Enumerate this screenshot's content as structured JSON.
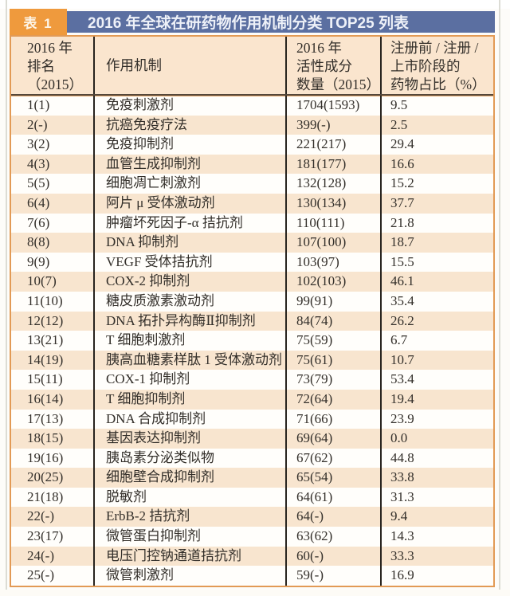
{
  "page": {
    "badge_label": "表 1",
    "title": "2016 年全球在研药物作用机制分类 TOP25 列表",
    "colors": {
      "badge_orange": "#EF9A3D",
      "banner_blue": "#5B6FA1",
      "header_peach": "#FAE5CE",
      "stripe_peach": "#F8E5CF",
      "border_orange": "#E29A55",
      "divider_dark": "#28241F",
      "text_dark": "#332F2A"
    }
  },
  "table": {
    "columns": [
      {
        "lines": [
          "2016 年",
          "排名",
          "（2015）"
        ]
      },
      {
        "lines": [
          "作用机制"
        ]
      },
      {
        "lines": [
          "2016 年",
          "活性成分",
          "数量（2015）"
        ]
      },
      {
        "lines": [
          "注册前 / 注册 /",
          "上市阶段的",
          "药物占比（%）"
        ]
      }
    ],
    "rows": [
      {
        "rank": "1(1)",
        "mechanism": "免疫刺激剂",
        "count": "1704(1593)",
        "pct": "9.5"
      },
      {
        "rank": "2(-)",
        "mechanism": "抗癌免疫疗法",
        "count": "399(-)",
        "pct": "2.5"
      },
      {
        "rank": "3(2)",
        "mechanism": "免疫抑制剂",
        "count": "221(217)",
        "pct": "29.4"
      },
      {
        "rank": "4(3)",
        "mechanism": "血管生成抑制剂",
        "count": "181(177)",
        "pct": "16.6"
      },
      {
        "rank": "5(5)",
        "mechanism": "细胞凋亡刺激剂",
        "count": "132(128)",
        "pct": "15.2"
      },
      {
        "rank": "6(4)",
        "mechanism": "阿片 μ 受体激动剂",
        "count": "130(134)",
        "pct": "37.7"
      },
      {
        "rank": "7(6)",
        "mechanism": "肿瘤坏死因子-α 拮抗剂",
        "count": "110(111)",
        "pct": "21.8"
      },
      {
        "rank": "8(8)",
        "mechanism": "DNA 抑制剂",
        "count": "107(100)",
        "pct": "18.7"
      },
      {
        "rank": "9(9)",
        "mechanism": "VEGF 受体拮抗剂",
        "count": "103(97)",
        "pct": "15.5"
      },
      {
        "rank": "10(7)",
        "mechanism": "COX-2 抑制剂",
        "count": "102(103)",
        "pct": "46.1"
      },
      {
        "rank": "11(10)",
        "mechanism": "糖皮质激素激动剂",
        "count": "99(91)",
        "pct": "35.4"
      },
      {
        "rank": "12(12)",
        "mechanism": "DNA 拓扑异构酶Ⅱ抑制剂",
        "count": "84(74)",
        "pct": "26.2"
      },
      {
        "rank": "13(21)",
        "mechanism": "T 细胞刺激剂",
        "count": "75(59)",
        "pct": "6.7"
      },
      {
        "rank": "14(19)",
        "mechanism": "胰高血糖素样肽 1 受体激动剂",
        "count": "75(61)",
        "pct": "10.7"
      },
      {
        "rank": "15(11)",
        "mechanism": "COX-1 抑制剂",
        "count": "73(79)",
        "pct": "53.4"
      },
      {
        "rank": "16(14)",
        "mechanism": "T 细胞抑制剂",
        "count": "72(64)",
        "pct": "19.4"
      },
      {
        "rank": "17(13)",
        "mechanism": "DNA 合成抑制剂",
        "count": "71(66)",
        "pct": "23.9"
      },
      {
        "rank": "18(15)",
        "mechanism": "基因表达抑制剂",
        "count": "69(64)",
        "pct": "0.0"
      },
      {
        "rank": "19(16)",
        "mechanism": "胰岛素分泌类似物",
        "count": "67(62)",
        "pct": "44.8"
      },
      {
        "rank": "20(25)",
        "mechanism": "细胞壁合成抑制剂",
        "count": "65(54)",
        "pct": "33.8"
      },
      {
        "rank": "21(18)",
        "mechanism": "脱敏剂",
        "count": "64(61)",
        "pct": "31.3"
      },
      {
        "rank": "22(-)",
        "mechanism": "ErbB-2 拮抗剂",
        "count": "64(-)",
        "pct": "9.4"
      },
      {
        "rank": "23(17)",
        "mechanism": "微管蛋白抑制剂",
        "count": "63(62)",
        "pct": "14.3"
      },
      {
        "rank": "24(-)",
        "mechanism": "电压门控钠通道拮抗剂",
        "count": "60(-)",
        "pct": "33.3"
      },
      {
        "rank": "25(-)",
        "mechanism": "微管刺激剂",
        "count": "59(-)",
        "pct": "16.9"
      }
    ]
  }
}
